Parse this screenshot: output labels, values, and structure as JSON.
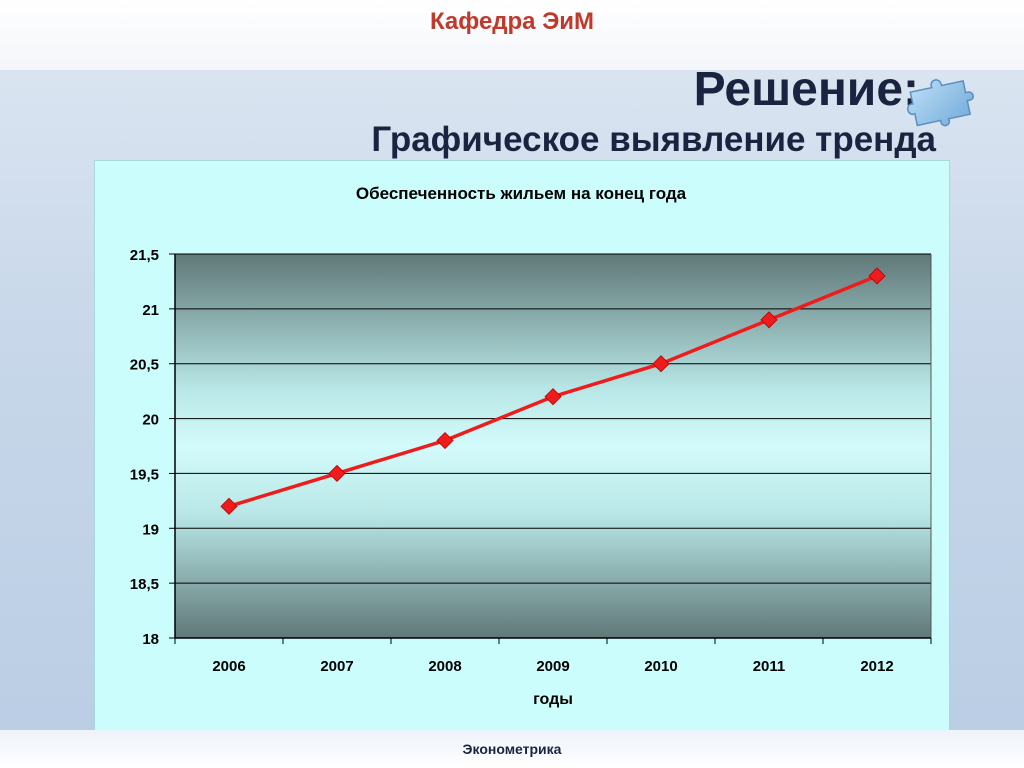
{
  "header": {
    "department": "Кафедра ЭиМ"
  },
  "slide": {
    "title": "Решение:",
    "subtitle": "Графическое выявление тренда"
  },
  "footer": {
    "course": "Эконометрика"
  },
  "icons": {
    "decoration": "puzzle-icon"
  },
  "colors": {
    "series": "#ee1c1c",
    "panel": "#ccfdfd",
    "title": "#1a2440",
    "header": "#c0392b"
  },
  "chart_data": {
    "type": "line",
    "title": "Обеспеченность жильем на конец года",
    "xlabel": "годы",
    "ylabel": "",
    "categories": [
      "2006",
      "2007",
      "2008",
      "2009",
      "2010",
      "2011",
      "2012"
    ],
    "series": [
      {
        "values": [
          19.2,
          19.5,
          19.8,
          20.2,
          20.5,
          20.9,
          21.3
        ]
      }
    ],
    "ylim": [
      18,
      21.5
    ],
    "yticks": [
      "18",
      "18,5",
      "19",
      "19,5",
      "20",
      "20,5",
      "21",
      "21,5"
    ],
    "grid": true,
    "legend": "none"
  }
}
